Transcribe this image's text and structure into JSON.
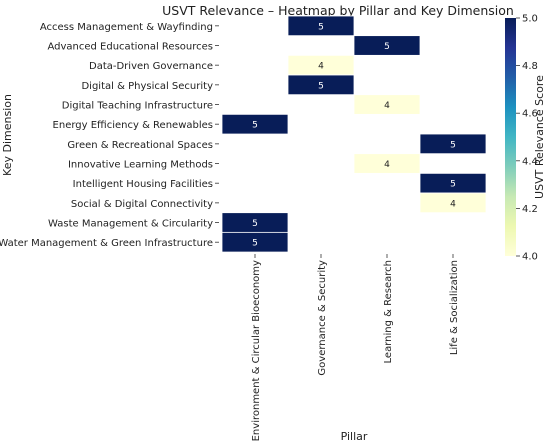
{
  "chart_data": {
    "type": "heatmap",
    "title": "USVT Relevance – Heatmap by Pillar and Key Dimension",
    "xlabel": "Pillar",
    "ylabel": "Key Dimension",
    "colorbar_label": "USVT Relevance Score",
    "x_categories": [
      "Environment & Circular Bioeconomy",
      "Governance & Security",
      "Learning & Research",
      "Life & Socialization"
    ],
    "y_categories": [
      "Access Management & Wayfinding",
      "Advanced Educational Resources",
      "Data-Driven Governance",
      "Digital & Physical Security",
      "Digital Teaching Infrastructure",
      "Energy Efficiency & Renewables",
      "Green & Recreational Spaces",
      "Innovative Learning Methods",
      "Intelligent Housing Facilities",
      "Social & Digital Connectivity",
      "Waste Management & Circularity",
      "Water Management & Green Infrastructure"
    ],
    "values": [
      [
        null,
        5,
        null,
        null
      ],
      [
        null,
        null,
        5,
        null
      ],
      [
        null,
        4,
        null,
        null
      ],
      [
        null,
        5,
        null,
        null
      ],
      [
        null,
        null,
        4,
        null
      ],
      [
        5,
        null,
        null,
        null
      ],
      [
        null,
        null,
        null,
        5
      ],
      [
        null,
        null,
        4,
        null
      ],
      [
        null,
        null,
        null,
        5
      ],
      [
        null,
        null,
        null,
        4
      ],
      [
        5,
        null,
        null,
        null
      ],
      [
        5,
        null,
        null,
        null
      ]
    ],
    "color_range": [
      4.0,
      5.0
    ],
    "colorbar_ticks": [
      "4.0",
      "4.2",
      "4.4",
      "4.6",
      "4.8",
      "5.0"
    ],
    "colormap": "YlGnBu",
    "color_low": "#ffffd9",
    "color_high": "#081d58",
    "grid": false
  }
}
